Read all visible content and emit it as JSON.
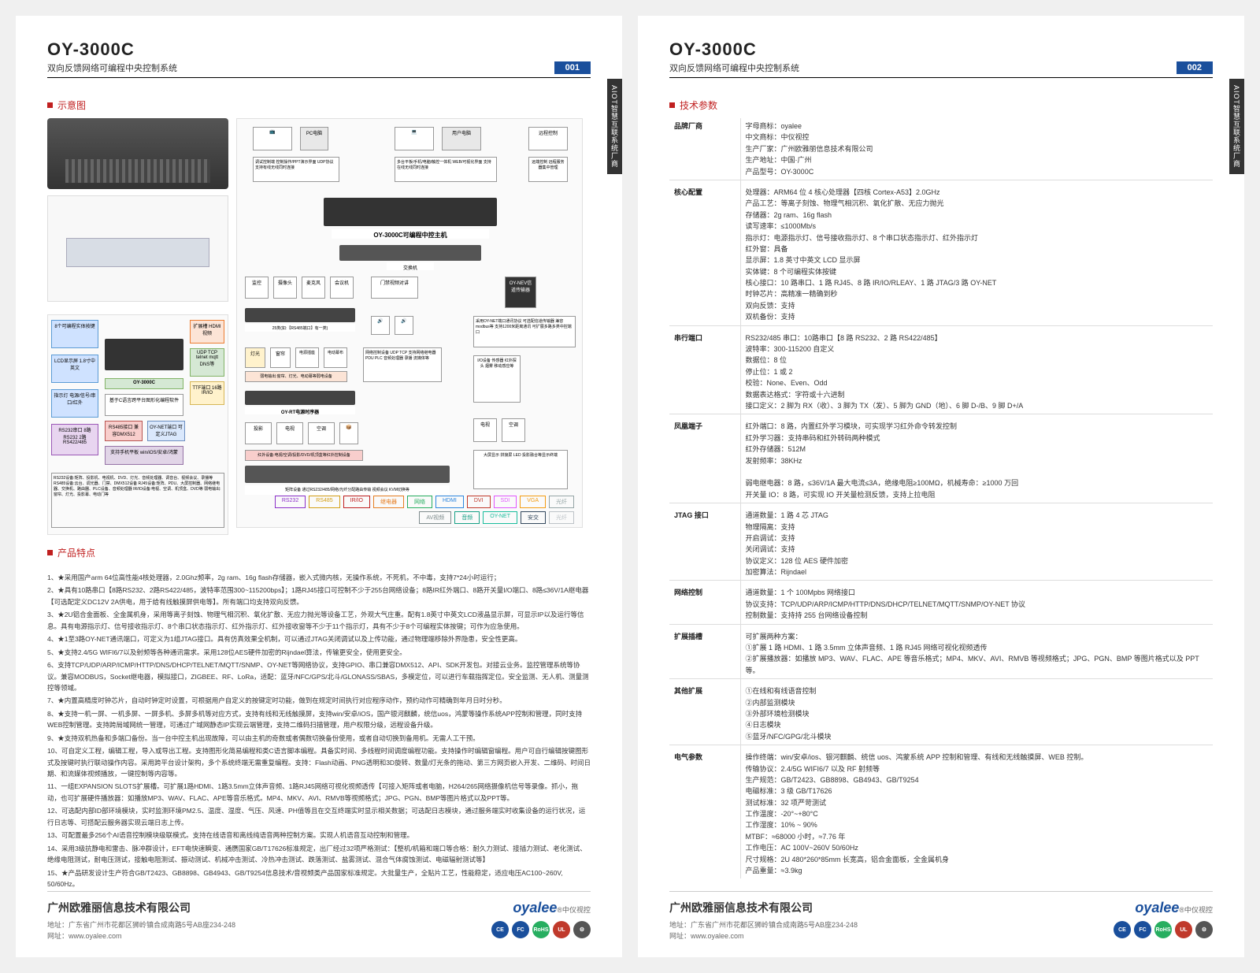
{
  "model": "OY-3000C",
  "subtitle": "双向反馈网络可编程中央控制系统",
  "page1": "001",
  "page2": "002",
  "sidetab": "AIOT智慧互联系统厂商",
  "sec_diagram": "示意图",
  "sec_features": "产品特点",
  "sec_specs": "技术参数",
  "legend": [
    {
      "label": "RS232",
      "color": "#8b2fc9"
    },
    {
      "label": "RS485",
      "color": "#d4a017"
    },
    {
      "label": "IR/IO",
      "color": "#c02020"
    },
    {
      "label": "继电器",
      "color": "#e67e22"
    },
    {
      "label": "网络",
      "color": "#27ae60"
    },
    {
      "label": "HDMI",
      "color": "#2e86de"
    },
    {
      "label": "DVI",
      "color": "#c0392b"
    },
    {
      "label": "SDI",
      "color": "#e056fd"
    },
    {
      "label": "VGA",
      "color": "#f39c12"
    },
    {
      "label": "光纤",
      "color": "#95a5a6"
    },
    {
      "label": "AV视频",
      "color": "#7f8c8d"
    },
    {
      "label": "音频",
      "color": "#16a085"
    },
    {
      "label": "OY-NET",
      "color": "#1abc9c"
    },
    {
      "label": "安交",
      "color": "#34495e"
    },
    {
      "label": "光纤",
      "color": "#bdc3c7"
    }
  ],
  "diagram_nodes": {
    "pc": "PC电脑",
    "user_pc": "用户电脑",
    "wifi": "远程控制",
    "mobile": "手机平板",
    "host": "OY-3000C可编程中控主机",
    "switch": "交换机",
    "monitor": "监控",
    "cam": "摄像头",
    "mic": "麦克风",
    "conf": "会议机",
    "lock": "门禁视频对讲",
    "pwr": "电源时序器",
    "relay": "OY-NEV信道传输器",
    "light": "灯光",
    "curtain": "窗帘",
    "speaker": "音箱",
    "proj": "投影",
    "tv": "电视",
    "ac": "空调",
    "io": "I/O设备",
    "oyrt": "OY-RT电源时序器",
    "matrix": "矩阵",
    "display": "大屏"
  },
  "features": [
    "1、★采用国产arm 64位高性能4核处理器，2.0Ghz频率，2g ram、16g flash存储器，嵌入式微内核，无操作系统，不死机，不中毒，支持7*24小时运行；",
    "2、★具有10路串口【8路RS232、2路RS422/485，波特率范围300~115200bps】；1路RJ45接口可控制不少于255台网络设备；8路IR红外端口、8路开关量I/O端口、8路≤36V/1A继电器【可选配定义DC12V 2A供电，用于给有线触摸屏供电等】。所有端口均支持双向反馈。",
    "3、★2U铝合金面板、全金属机身，采用等离子刻蚀、物理气相沉积、氧化扩散、无应力抛光等设备工艺，外观大气庄重。配有1.8英寸中英文LCD液晶显示屏，可显示IP以及运行等信息。具有电源指示灯、信号接收指示灯、8个串口状态指示灯、红外指示灯、红外接收窗等不少于11个指示灯，具有不少于8个可编程实体按键；可作为应急使用。",
    "4、★1至3路OY-NET通讯端口，可定义为1组JTAG接口。具有仿真效果全机制，可以通过JTAG关闭调试以及上传功能，通过物理端移除外界隐患，安全性更高。",
    "5、★支持2.4/5G WIFI6/7以及射频等各种通讯需求。采用128位AES硬件加密的Rijndael算法，传输更安全，使用更安全。",
    "6、支持TCP/UDP/ARP/ICMP/HTTP/DNS/DHCP/TELNET/MQTT/SNMP、OY-NET等网络协议，支持GPIO、串口兼容DMX512、API、SDK开发包。对接云业务。监控管理系统等协议。兼容MODBUS，Socket继电器，模拟接口，ZIGBEE、RF、LoRa，适配：蓝牙/NFC/GPS/北斗/GLONASS/SBAS，多模定位，可以进行车载指挥定位。安全监测、无人机、测量测控等领域。",
    "7、★内置高精度时钟芯片，自动时钟定时设置，可根据用户自定义的按键定时功能，做到在规定时间执行对应程序动作，预约动作可精确到年月日时分秒。",
    "8、★支持一机一屏、一机多屏、一屏多机、多屏多机等对应方式，支持有线和无线触摸屏，支持win/安卓/iOS，国产银河麒麟，统信uos，鸿蒙等操作系统APP控制和管理，同时支持WEB控制管理。支持跨局域网统一管理，可通过广域网静态IP实现云端管理，支持二维码扫描管理，用户权限分级，远程设备升级。",
    "9、★支持双机热备和多端口备份。当一台中控主机出现故障，可以由主机的奇数或者偶数切换备份使用，或者自动切换到备用机。无需人工干预。",
    "10、可自定义工程，编辑工程，导入或导出工程。支持图形化简易编程和类C语言脚本编程。具备实时间、多线程时间调度编程功能。支持操作时编辑窗编程。用户可自行编辑按键图形式及按键时执行联动操作内容。采用跨平台设计架构，多个系统终端无需重复编程。支持：Flash动画、PNG透明和3D旋转、数量/灯光条的拖动、第三方网页嵌入开发、二维码、时间日期、和流媒体视频播放，一键控制等内容等。",
    "11、一组EXPANSION SLOTS扩展槽。可扩展1路HDMI、1路3.5mm立体声音频、1路RJ45网络可视化视频透传【可接入矩阵或者电脑，H264/265网络摄像机信号等录像。抓小，拖动，也可扩展硬件播放器：如播放MP3、WAV、FLAC、APE等音乐格式。MP4、MKV、AVI、RMVB等视频格式；JPG、PGN、BMP等图片格式以及PPT等。",
    "12、可选配内部ID部环境模块，实时监测环境PM2.5、温度、湿度、气压、风速、PH值等且在交互终端实时显示相关数据；可选配日志模块，通过服务端实时收集设备的运行状况，运行日志等、可搭配云服务器实现云端日志上传。",
    "13、可配置最多256个AI语音控制模块级联模式。支持在线语音和离线纯语音两种控制方案。实现人机语音互动控制和管理。",
    "14、采用3级抗静电和雷击、脉冲群设计，EFT电快速瞬变、通赝国家GB/T17626标准规定，出厂经过32项严格测试：【整机/机箱和端口等合格：耐久力测试、接插力测试、老化测试、绝缘电阻测试，耐电压测试，接触电阻测试、振动测试、机械冲击测试、冷热冲击测试、跌落测试、盐雾测试、混合气体腐蚀测试、电磁辐射测试等】",
    "15、★产品研发设计生产符合GB/T2423、GB8898、GB4943、GB/T9254信息技术/音视频类产品国家标准规定。大批量生产，全贴片工艺，性能稳定，适应电压AC100~260V, 50/60Hz。"
  ],
  "specs": [
    {
      "cat": "品牌厂商",
      "lines": [
        "字母商标：oyalee",
        "中文商标：中仪视控",
        "生产厂家：广州欧雅丽信息技术有限公司",
        "生产地址：中国·广州",
        "产品型号：OY-3000C"
      ]
    },
    {
      "cat": "核心配置",
      "lines": [
        "处理器：ARM64 位 4 核心处理器【四核 Cortex-A53】2.0GHz",
        "产品工艺：等离子刻蚀、物理气相沉积、氧化扩散、无应力抛光",
        "存储器：2g ram、16g flash",
        "读写速率：≤1000Mb/s",
        "指示灯：电源指示灯、信号接收指示灯、8 个串口状态指示灯、红外指示灯",
        "红外窗：具备",
        "显示屏：1.8 英寸中英文 LCD 显示屏",
        "实体键：8 个可编程实体按键",
        "核心接口：10 路串口、1 路 RJ45、8 路 IR/IO/RLEAY、1 路 JTAG/3 路 OY-NET",
        "时钟芯片：高精准一精确到秒",
        "双向反馈：支持",
        "双机备份：支持"
      ]
    },
    {
      "cat": "串行端口",
      "lines": [
        "RS232/485 串口：10路串口【8 路 RS232、2 路 RS422/485】",
        "波特率：300-115200 自定义",
        "数据位：8 位",
        "停止位：1 或 2",
        "校验：None、Even、Odd",
        "数据表达格式：字符或十六进制",
        "接口定义：2 脚为 RX（收）、3 脚为 TX（发）、5 脚为 GND（地）、6 脚 D-/B、9 脚 D+/A"
      ]
    },
    {
      "cat": "凤凰端子",
      "lines": [
        "红外端口：8 路，内置红外学习模块，可实现学习红外命令转发控制",
        "红外学习器：支持串码和红外转码两种模式",
        "红外存储器：512M",
        "发射频率：38KHz",
        "",
        "弱电继电器：8 路，≤36V/1A 最大电流≤3A，绝缘电阻≥100MΩ，机械寿命：≥1000 万回",
        "开关量 IO：8 路，可实现 IO 开关量检测反馈，支持上拉电阻"
      ]
    },
    {
      "cat": "JTAG 接口",
      "lines": [
        "通道数量：1 路 4 芯 JTAG",
        "物理隔离：支持",
        "开启调试：支持",
        "关闭调试：支持",
        "协议定义：128 位 AES 硬件加密",
        "加密算法：Rijndael"
      ]
    },
    {
      "cat": "网络控制",
      "lines": [
        "通道数量：1 个 100Mpbs 网络接口",
        "协议支持：TCP/UDP/ARP/ICMP/HTTP/DNS/DHCP/TELNET/MQTT/SNMP/OY-NET 协议",
        "控制数量：支持持 255 台网络设备控制"
      ]
    },
    {
      "cat": "扩展插槽",
      "lines": [
        "可扩展两种方案：",
        "①扩展 1 路 HDMI、1 路 3.5mm 立体声音频、1 路 RJ45 网络可视化视频透传",
        "②扩展播放器：如播放 MP3、WAV、FLAC、APE 等音乐格式；MP4、MKV、AVI、RMVB 等视频格式；JPG、PGN、BMP 等图片格式以及 PPT 等。"
      ]
    },
    {
      "cat": "其他扩展",
      "lines": [
        "①在线和有线语音控制",
        "②内部监测模块",
        "③外部环境检测模块",
        "④日志模块",
        "⑤蓝牙/NFC/GPG/北斗模块"
      ]
    },
    {
      "cat": "电气参数",
      "lines": [
        "操作终端：win/安卓/ios、银河麒麟、统信 uos、鸿蒙系统 APP 控制和管理、有线和无线触摸屏、WEB 控制。",
        "传输协议：2.4/5G WIFI6/7 以及 RF 射频等",
        "生产规范：GB/T2423、GB8898、GB4943、GB/T9254",
        "电磁标准：3 级 GB/T17626",
        "测试标准：32 项严苛测试",
        "工作温度：-20°~+80°C",
        "工作湿度：10% ~ 90%",
        "MTBF：≈68000 小时，≈7.76 年",
        "工作电压：AC 100V~260V 50/60Hz",
        "尺寸规格：2U 480*260*85mm 长宽高，铝合金面板，全金属机身",
        "产品重量：≈3.9kg"
      ]
    }
  ],
  "footer": {
    "company": "广州欧雅丽信息技术有限公司",
    "addr": "地址：广东省广州市花都区狮岭镇合成南路5号AB座234-248",
    "web": "网址：www.oyalee.com",
    "logo": "oyalee",
    "logo_sub": "®中仪视控",
    "badges": [
      {
        "t": "CE",
        "c": "#1a4f9c"
      },
      {
        "t": "FC",
        "c": "#1a4f9c"
      },
      {
        "t": "RoHS",
        "c": "#27ae60"
      },
      {
        "t": "UL",
        "c": "#c0392b"
      },
      {
        "t": "⚙",
        "c": "#555"
      }
    ]
  }
}
